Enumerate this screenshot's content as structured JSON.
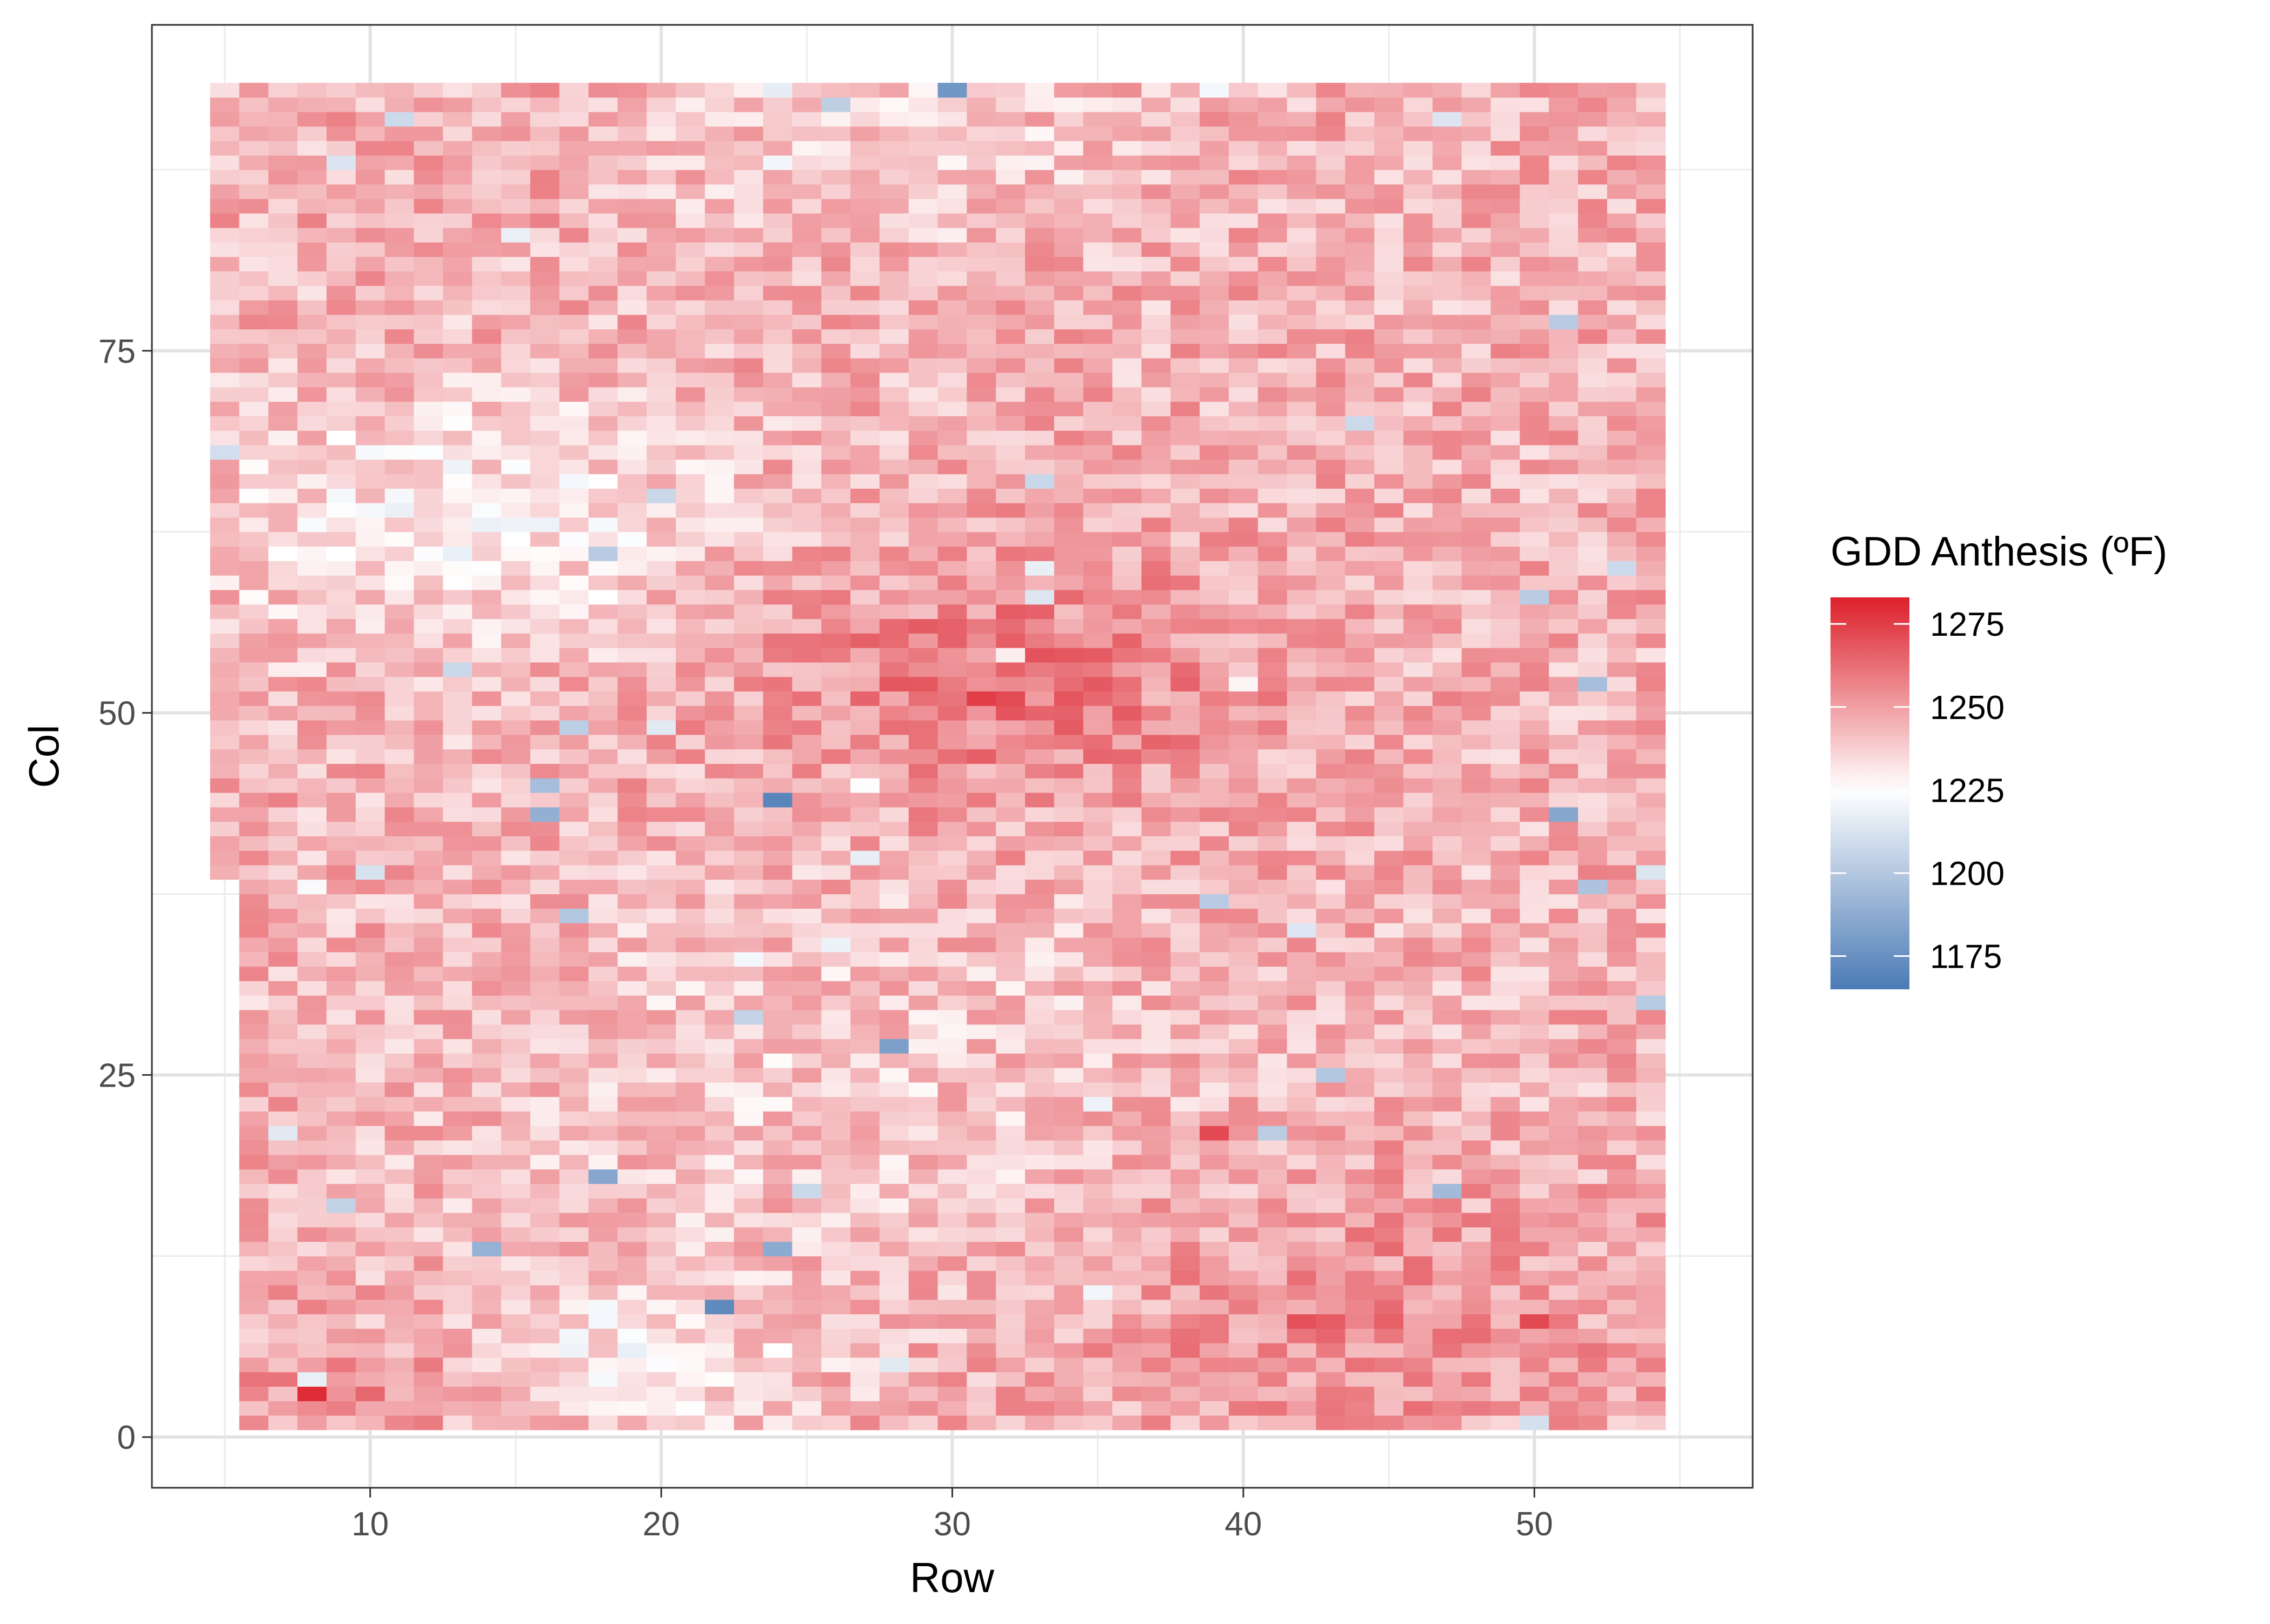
{
  "chart_data": {
    "type": "heatmap",
    "title": "",
    "xlabel": "Row",
    "ylabel": "Col",
    "x_ticks": [
      10,
      20,
      30,
      40,
      50
    ],
    "y_ticks": [
      0,
      25,
      50,
      75
    ],
    "xlim": [
      2.5,
      57.5
    ],
    "ylim": [
      -3.5,
      97.5
    ],
    "grid": true,
    "legend": {
      "title": "GDD Anthesis (ºF)",
      "placement": "right",
      "breaks": [
        1275,
        1250,
        1225,
        1200,
        1175
      ],
      "range": [
        1165,
        1283
      ],
      "low_color": "#4a7ab5",
      "mid_color": "#ffffff",
      "high_color": "#dc1f2a",
      "midpoint": 1225
    },
    "extent": {
      "row_range": [
        5,
        54
      ],
      "col_range": [
        1,
        93
      ],
      "upper_block_rows_from": 5,
      "upper_block_cols_from": 39,
      "lower_block_rows_from": 6,
      "lower_block_cols_to": 38
    },
    "value_summary": {
      "typical": 1245,
      "min": 1168,
      "max": 1280,
      "hotspots": [
        {
          "row": 31,
          "col": 51,
          "value": 1275
        },
        {
          "row": 8,
          "col": 3,
          "value": 1280
        },
        {
          "row": 39,
          "col": 21,
          "value": 1272
        },
        {
          "row": 50,
          "col": 8,
          "value": 1272
        },
        {
          "row": 42,
          "col": 8,
          "value": 1270
        }
      ],
      "coldspots": [
        {
          "row": 24,
          "col": 44,
          "value": 1170
        },
        {
          "row": 22,
          "col": 9,
          "value": 1172
        },
        {
          "row": 30,
          "col": 93,
          "value": 1178
        },
        {
          "row": 28,
          "col": 27,
          "value": 1182
        },
        {
          "row": 18,
          "col": 18,
          "value": 1185
        },
        {
          "row": 51,
          "col": 43,
          "value": 1185
        },
        {
          "row": 14,
          "col": 13,
          "value": 1190
        }
      ]
    }
  }
}
